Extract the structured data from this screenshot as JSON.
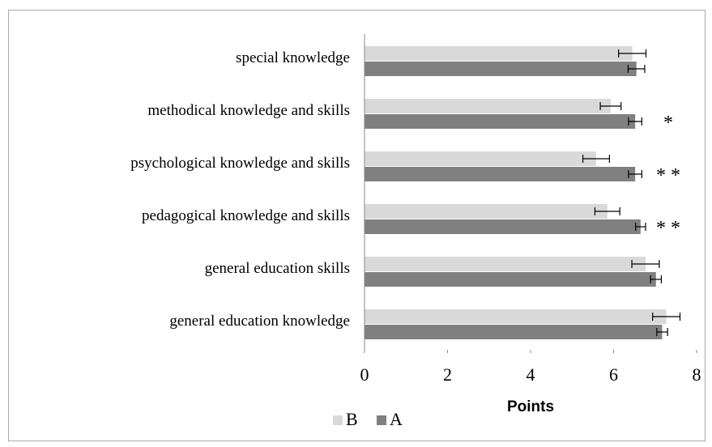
{
  "chart_data": {
    "type": "bar",
    "orientation": "horizontal",
    "xlabel": "Points",
    "categories": [
      "special knowledge",
      "methodical knowledge and skills",
      "psychological knowledge and skills",
      "pedagogical knowledge and skills",
      "general education skills",
      "general education knowledge"
    ],
    "series": [
      {
        "name": "B",
        "color": "#d9d9d9",
        "values": [
          6.45,
          5.93,
          5.58,
          5.85,
          6.77,
          7.27
        ],
        "errors": [
          0.33,
          0.25,
          0.32,
          0.3,
          0.33,
          0.33
        ]
      },
      {
        "name": "A",
        "color": "#808080",
        "values": [
          6.55,
          6.52,
          6.52,
          6.65,
          7.02,
          7.17
        ],
        "errors": [
          0.2,
          0.16,
          0.16,
          0.12,
          0.13,
          0.13
        ]
      }
    ],
    "annotations": [
      null,
      "*",
      "**",
      "**",
      null,
      null
    ],
    "xlim": [
      0,
      8
    ],
    "xticks": [
      0,
      2,
      4,
      6,
      8
    ],
    "grid": false,
    "legend": "bottom"
  }
}
